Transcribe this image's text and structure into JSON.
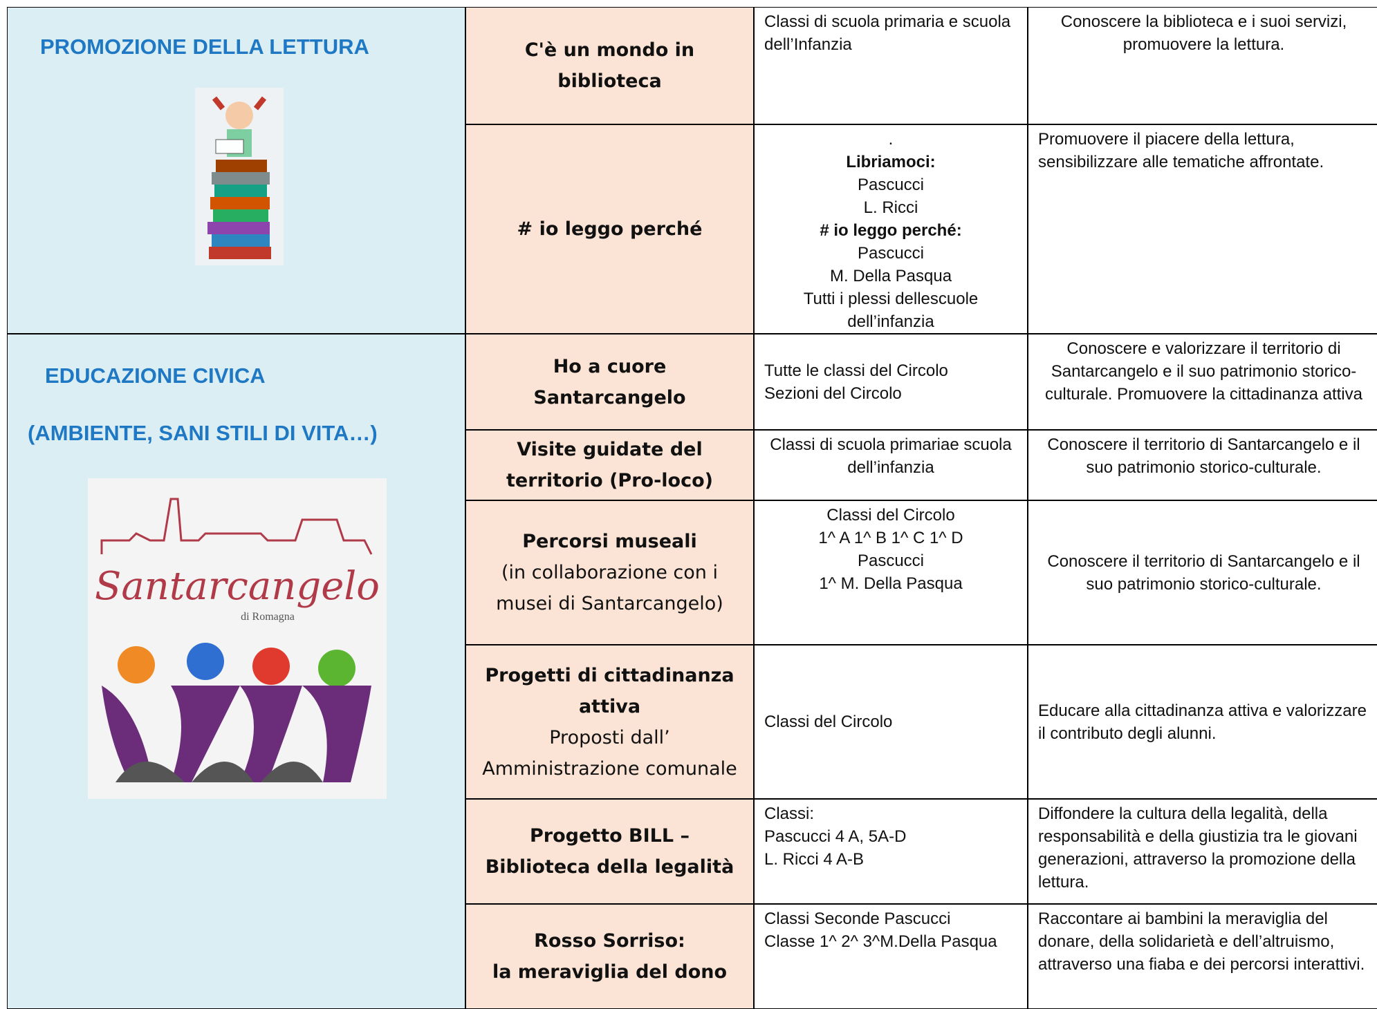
{
  "sections": [
    {
      "title": "PROMOZIONE DELLA LETTURA",
      "rows": [
        {
          "project": [
            {
              "text": "C'è un mondo in biblioteca",
              "bold": true
            }
          ],
          "classes": [
            "Classi di scuola primaria e scuola dell’Infanzia"
          ],
          "goal": [
            "Conoscere la biblioteca e i suoi servizi, promuovere la lettura."
          ]
        },
        {
          "project": [
            {
              "text": "# io leggo perché",
              "bold": true
            }
          ],
          "classes": [
            ".",
            {
              "text": "Libriamoci:",
              "bold": true
            },
            "Pascucci",
            "L. Ricci",
            {
              "text": "# io leggo perché:",
              "bold": true
            },
            "Pascucci",
            "M. Della Pasqua",
            "Tutti i plessi dellescuole dell’infanzia"
          ],
          "goal": [
            "Promuovere il piacere della lettura, sensibilizzare alle tematiche affrontate."
          ]
        }
      ]
    },
    {
      "title": "EDUCAZIONE CIVICA",
      "subtitle": "(AMBIENTE, SANI STILI DI VITA…)",
      "logo": {
        "name": "Santarcangelo",
        "place": "di Romagna"
      },
      "rows": [
        {
          "project": [
            {
              "text": "Ho a cuore Santarcangelo",
              "bold": true
            }
          ],
          "classes": [
            "Tutte le classi del Circolo",
            "Sezioni del Circolo"
          ],
          "goal": [
            "Conoscere e valorizzare il territorio di Santarcangelo e il suo patrimonio storico-culturale. Promuovere la cittadinanza attiva"
          ]
        },
        {
          "project": [
            {
              "text": "Visite guidate del territorio (Pro-loco)",
              "bold": true
            }
          ],
          "classes": [
            "Classi di scuola primariae scuola dell’infanzia"
          ],
          "goal": [
            "Conoscere il territorio di Santarcangelo e il suo patrimonio storico-culturale."
          ]
        },
        {
          "project": [
            {
              "text": "Percorsi museali",
              "bold": true
            },
            "(in collaborazione con i musei di Santarcangelo)"
          ],
          "classes": [
            "Classi del Circolo",
            "1^ A 1^ B 1^ C 1^ D",
            "Pascucci",
            "1^  M. Della Pasqua"
          ],
          "goal": [
            "Conoscere il territorio di Santarcangelo e il suo patrimonio storico-culturale."
          ]
        },
        {
          "project": [
            {
              "text": "Progetti di cittadinanza attiva",
              "bold": true
            },
            "Proposti dall’ Amministrazione comunale"
          ],
          "classes": [
            "Classi del Circolo"
          ],
          "goal": [
            "Educare alla cittadinanza attiva e valorizzare il contributo degli alunni."
          ]
        },
        {
          "project": [
            {
              "text": "Progetto BILL – Biblioteca della legalità",
              "bold": true
            }
          ],
          "classes": [
            "Classi:",
            "Pascucci 4 A, 5A-D",
            "L. Ricci 4 A-B"
          ],
          "goal": [
            "Diffondere la cultura della legalità, della responsabilità e della giustizia tra le giovani generazioni, attraverso la promozione della lettura."
          ]
        },
        {
          "project": [
            {
              "text": "Rosso Sorriso:",
              "bold": true
            },
            {
              "text": "la meraviglia del dono",
              "bold": true
            }
          ],
          "classes": [
            "Classi Seconde Pascucci",
            "Classe 1^ 2^ 3^M.Della Pasqua"
          ],
          "goal": [
            "Raccontare ai bambini la meraviglia del donare, della solidarietà e dell’altruismo, attraverso una fiaba e dei percorsi interattivi."
          ]
        }
      ]
    }
  ]
}
